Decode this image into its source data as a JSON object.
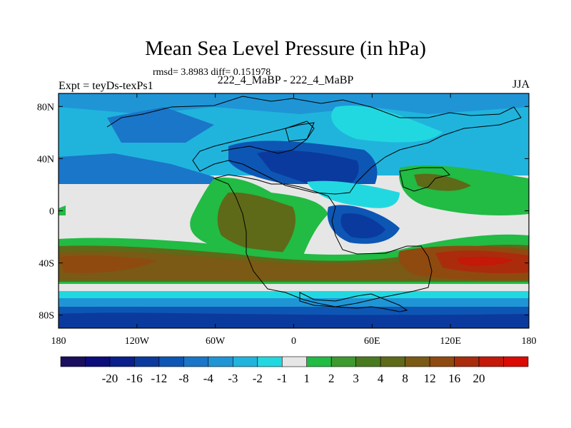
{
  "figure": {
    "title": "Mean Sea Level Pressure (in hPa)",
    "stats": "rmsd= 3.8983 diff= 0.151978",
    "expt": "Expt = teyDs-texPs1",
    "center_label": "222_4_MaBP - 222_4_MaBP",
    "season": "JJA"
  },
  "axes": {
    "lon_ticks": [
      {
        "lon": -180,
        "label": "180"
      },
      {
        "lon": -120,
        "label": "120W"
      },
      {
        "lon": -60,
        "label": "60W"
      },
      {
        "lon": 0,
        "label": "0"
      },
      {
        "lon": 60,
        "label": "60E"
      },
      {
        "lon": 120,
        "label": "120E"
      },
      {
        "lon": 180,
        "label": "180"
      }
    ],
    "lat_ticks": [
      {
        "lat": 80,
        "label": "80N"
      },
      {
        "lat": 40,
        "label": "40N"
      },
      {
        "lat": 0,
        "label": "0"
      },
      {
        "lat": -40,
        "label": "40S"
      },
      {
        "lat": -80,
        "label": "80S"
      }
    ],
    "lon_range": [
      -180,
      180
    ],
    "lat_range": [
      -90,
      90
    ]
  },
  "colorbar": {
    "colors": [
      "#1a0f5e",
      "#0c0c7a",
      "#0a1f8c",
      "#0b3a9e",
      "#0d56b4",
      "#1a76c8",
      "#1f95d6",
      "#20b4dd",
      "#22d8e0",
      "#e6e6e6",
      "#22bb44",
      "#3d9a2e",
      "#4a7a20",
      "#5e6a18",
      "#7a5a14",
      "#8f4a10",
      "#aa2c0c",
      "#c41808",
      "#dc0a04"
    ],
    "labels": [
      "-20",
      "-16",
      "-12",
      "-8",
      "-4",
      "-3",
      "-2",
      "-1",
      "1",
      "2",
      "3",
      "4",
      "8",
      "12",
      "16",
      "20"
    ]
  },
  "map_colors": {
    "neutral": "#e6e6e6",
    "blue1": "#22d8e0",
    "blue2": "#20b4dd",
    "blue3": "#1f95d6",
    "blue4": "#1a76c8",
    "blue5": "#0d56b4",
    "blue6": "#0b3a9e",
    "blue7": "#0a1f8c",
    "green1": "#22bb44",
    "green2": "#3d9a2e",
    "brown1": "#5e6a18",
    "brown2": "#7a5a14",
    "brown3": "#8f4a10",
    "red1": "#aa2c0c",
    "red2": "#c41808"
  }
}
